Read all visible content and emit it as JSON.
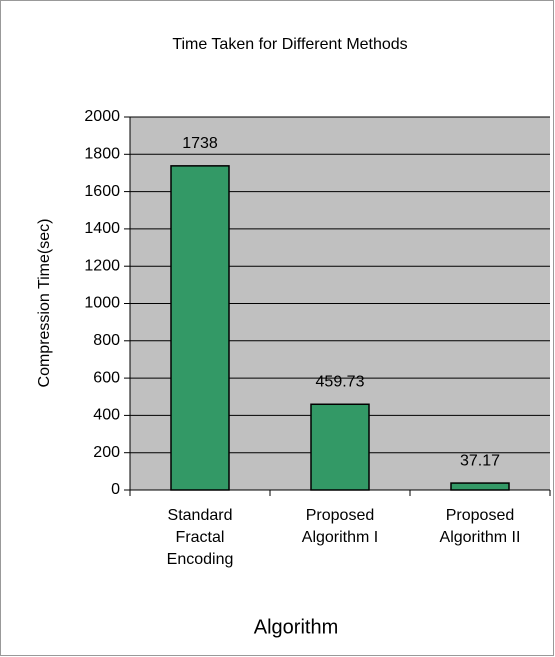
{
  "chart_data": {
    "type": "bar",
    "title": "Time Taken for Different Methods",
    "categories": [
      [
        "Standard",
        "Fractal",
        "Encoding"
      ],
      [
        "Proposed",
        "Algorithm I"
      ],
      [
        "Proposed",
        "Algorithm II"
      ]
    ],
    "values": [
      1738,
      459.73,
      37.17
    ],
    "color": "#339966",
    "ylabel": "Compression Time(sec)",
    "xlabel": "Algorithm",
    "ylim": [
      0,
      2000
    ],
    "yticks": [
      0,
      200,
      400,
      600,
      800,
      1000,
      1200,
      1400,
      1600,
      1800,
      2000
    ],
    "grid": true
  }
}
